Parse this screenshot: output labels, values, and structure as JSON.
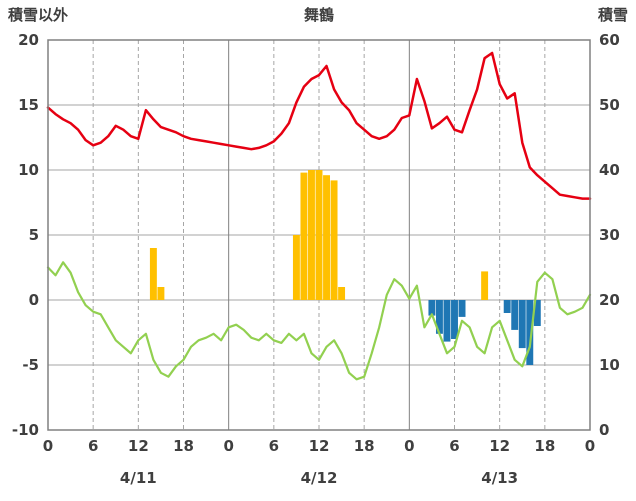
{
  "chart_data": {
    "type": "line+bar",
    "title": "舞鶴",
    "left_axis": {
      "title": "積雪以外",
      "min": -10,
      "max": 20,
      "ticks": [
        20,
        15,
        10,
        5,
        0,
        -5,
        -10
      ]
    },
    "right_axis": {
      "title": "積雪",
      "min": 0,
      "max": 60,
      "ticks": [
        60,
        50,
        40,
        30,
        20,
        10,
        0
      ]
    },
    "x_axis": {
      "span": 72,
      "tick_hours": [
        0,
        6,
        12,
        18,
        24,
        30,
        36,
        42,
        48,
        54,
        60,
        66,
        72
      ],
      "tick_labels": [
        "0",
        "6",
        "12",
        "18",
        "0",
        "6",
        "12",
        "18",
        "0",
        "6",
        "12",
        "18",
        "0"
      ],
      "day_labels": [
        {
          "hour": 12,
          "label": "4/11"
        },
        {
          "hour": 36,
          "label": "4/12"
        },
        {
          "hour": 60,
          "label": "4/13"
        }
      ]
    },
    "style": {
      "grid_color": "#a6a6a6",
      "day_line_color": "#808080",
      "frame_color": "#808080",
      "text_color": "#3f3f3f",
      "background": "#ffffff"
    },
    "series": [
      {
        "name": "precipitation-bars",
        "type": "bar",
        "color": "#ffc000",
        "values": {
          "14": 4,
          "15": 1,
          "33": 5,
          "34": 9.8,
          "35": 10,
          "36": 10,
          "37": 9.6,
          "38": 9.2,
          "39": 1,
          "58": 2.2
        }
      },
      {
        "name": "snowfall-bars",
        "type": "bar",
        "color": "#1f77b4",
        "values": {
          "51": -1.2,
          "52": -2.6,
          "53": -3.2,
          "54": -3.0,
          "55": -1.3,
          "61": -1.0,
          "62": -2.3,
          "63": -3.7,
          "64": -5.0,
          "65": -2.0
        }
      },
      {
        "name": "green-line",
        "type": "line",
        "color": "#92d050",
        "width": 2.2,
        "values": [
          2.5,
          1.9,
          2.9,
          2.1,
          0.6,
          -0.4,
          -0.9,
          -1.1,
          -2.1,
          -3.1,
          -3.6,
          -4.1,
          -3.1,
          -2.6,
          -4.6,
          -5.6,
          -5.9,
          -5.1,
          -4.6,
          -3.6,
          -3.1,
          -2.9,
          -2.6,
          -3.1,
          -2.1,
          -1.9,
          -2.3,
          -2.9,
          -3.1,
          -2.6,
          -3.1,
          -3.3,
          -2.6,
          -3.1,
          -2.6,
          -4.1,
          -4.6,
          -3.6,
          -3.1,
          -4.1,
          -5.6,
          -6.1,
          -5.9,
          -4.1,
          -2.1,
          0.4,
          1.6,
          1.1,
          0.1,
          1.1,
          -2.1,
          -1.1,
          -2.6,
          -4.1,
          -3.6,
          -1.6,
          -2.1,
          -3.6,
          -4.1,
          -2.1,
          -1.6,
          -3.1,
          -4.6,
          -5.1,
          -3.6,
          1.4,
          2.1,
          1.6,
          -0.6,
          -1.1,
          -0.9,
          -0.6,
          0.4
        ]
      },
      {
        "name": "red-line",
        "type": "line",
        "color": "#e60012",
        "width": 2.5,
        "values": [
          14.8,
          14.3,
          13.9,
          13.6,
          13.1,
          12.3,
          11.9,
          12.1,
          12.6,
          13.4,
          13.1,
          12.6,
          12.4,
          14.6,
          13.9,
          13.3,
          13.1,
          12.9,
          12.6,
          12.4,
          12.3,
          12.2,
          12.1,
          12.0,
          11.9,
          11.8,
          11.7,
          11.6,
          11.7,
          11.9,
          12.2,
          12.8,
          13.6,
          15.2,
          16.4,
          17.0,
          17.3,
          18.0,
          16.2,
          15.2,
          14.6,
          13.6,
          13.1,
          12.6,
          12.4,
          12.6,
          13.1,
          14.0,
          14.2,
          17.0,
          15.3,
          13.2,
          13.6,
          14.1,
          13.1,
          12.9,
          14.6,
          16.2,
          18.6,
          19.0,
          16.6,
          15.5,
          15.9,
          12.1,
          10.2,
          9.6,
          9.1,
          8.6,
          8.1,
          8.0,
          7.9,
          7.8,
          7.8
        ]
      }
    ]
  }
}
